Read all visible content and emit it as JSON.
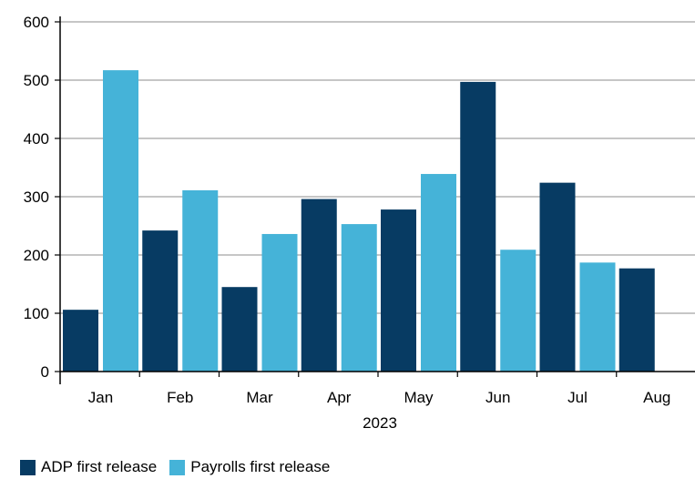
{
  "chart_data": {
    "type": "bar",
    "xlabel": "2023",
    "categories": [
      "Jan",
      "Feb",
      "Mar",
      "Apr",
      "May",
      "Jun",
      "Jul",
      "Aug"
    ],
    "series": [
      {
        "name": "ADP first release",
        "color": "#073b63",
        "values": [
          106,
          242,
          145,
          296,
          278,
          497,
          324,
          177
        ]
      },
      {
        "name": "Payrolls first release",
        "color": "#45b3d8",
        "values": [
          517,
          311,
          236,
          253,
          339,
          209,
          187,
          null
        ]
      }
    ],
    "ylim": [
      0,
      600
    ],
    "yticks": [
      0,
      100,
      200,
      300,
      400,
      500,
      600
    ],
    "grid": true,
    "legend_position": "bottom-left"
  }
}
